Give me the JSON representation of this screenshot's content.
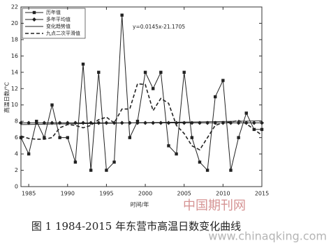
{
  "chart_data": {
    "type": "line",
    "y_label": "高温日数/°C",
    "x_label": "时间/年",
    "annotation": "y=0.0145x-21.1705",
    "x": [
      1984,
      1985,
      1986,
      1987,
      1988,
      1989,
      1990,
      1991,
      1992,
      1993,
      1994,
      1995,
      1996,
      1997,
      1998,
      1999,
      2000,
      2001,
      2002,
      2003,
      2004,
      2005,
      2006,
      2007,
      2008,
      2009,
      2010,
      2011,
      2012,
      2013,
      2014,
      2015
    ],
    "xlim": [
      1984,
      2015
    ],
    "xticks": [
      1985,
      1990,
      1995,
      2000,
      2005,
      2010,
      2015
    ],
    "ylim": [
      0,
      22
    ],
    "yticks": [
      0,
      2,
      4,
      6,
      8,
      10,
      12,
      14,
      16,
      18,
      20,
      22
    ],
    "legend": "upper-left",
    "series": [
      {
        "name": "历年值",
        "color": "#222222",
        "marker": "square",
        "dash": false,
        "values": [
          6,
          4,
          8,
          6,
          10,
          6,
          6,
          3,
          15,
          2,
          14,
          2,
          3,
          21,
          6,
          8,
          14,
          12,
          14,
          5,
          4,
          14,
          6,
          3,
          2,
          11,
          13,
          2,
          6,
          9,
          7,
          7
        ]
      },
      {
        "name": "多年平均值",
        "color": "#222222",
        "marker": "diamond",
        "dash": false,
        "values": [
          7.8,
          7.8,
          7.8,
          7.8,
          7.8,
          7.8,
          7.8,
          7.8,
          7.8,
          7.8,
          7.8,
          7.8,
          7.8,
          7.8,
          7.8,
          7.8,
          7.8,
          7.8,
          7.8,
          7.8,
          7.8,
          7.8,
          7.8,
          7.8,
          7.8,
          7.8,
          7.8,
          7.8,
          7.8,
          7.8,
          7.8,
          7.8
        ]
      },
      {
        "name": "变化趋势值",
        "color": "#222222",
        "marker": null,
        "dash": false,
        "values": [
          7.6,
          7.61,
          7.63,
          7.64,
          7.66,
          7.67,
          7.69,
          7.7,
          7.72,
          7.73,
          7.75,
          7.76,
          7.77,
          7.79,
          7.8,
          7.82,
          7.83,
          7.85,
          7.86,
          7.88,
          7.89,
          7.91,
          7.92,
          7.93,
          7.95,
          7.96,
          7.98,
          7.99,
          8.01,
          8.02,
          8.04,
          8.05
        ]
      },
      {
        "name": "九点二次平滑值",
        "color": "#222222",
        "marker": null,
        "dash": true,
        "values": [
          6.2,
          5.9,
          5.8,
          5.8,
          6,
          7.2,
          7.6,
          7.5,
          7.2,
          7.5,
          8.2,
          8.5,
          7.8,
          9.5,
          9.5,
          12.6,
          12.5,
          9.3,
          10.8,
          10.2,
          7.5,
          6.5,
          5,
          4.5,
          6,
          7.5,
          7.8,
          7.9,
          8.1,
          7.7,
          7,
          6.3
        ]
      }
    ]
  },
  "caption": "图 1 1984-2015 年东营市高温日数变化曲线",
  "watermark": {
    "site": "中国期刊网",
    "url": "www.chinaqking.com"
  }
}
